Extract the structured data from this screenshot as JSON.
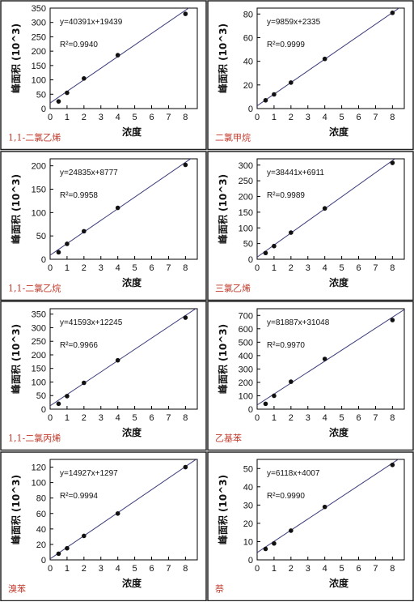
{
  "chart_data": [
    {
      "type": "scatter",
      "compound": "1,1-二氯乙烯",
      "equation": "y=40391x+19439",
      "r2": "R²=0.9940",
      "ylabel": "峰面积 (10^3)",
      "xlabel": "浓度",
      "xlim": [
        0,
        8.7
      ],
      "ylim": [
        0,
        350
      ],
      "xticks": [
        0,
        1,
        2,
        3,
        4,
        5,
        6,
        7,
        8
      ],
      "yticks": [
        0,
        50,
        100,
        150,
        200,
        250,
        300,
        350
      ],
      "points": [
        [
          0.5,
          25
        ],
        [
          1,
          55
        ],
        [
          2,
          105
        ],
        [
          4,
          186
        ],
        [
          8,
          330
        ]
      ],
      "fit": {
        "slope": 40.391,
        "intercept": 19.439
      }
    },
    {
      "type": "scatter",
      "compound": "二氯甲烷",
      "equation": "y=9859x+2335",
      "r2": "R²=0.9999",
      "ylabel": "峰面积 (10^3)",
      "xlabel": "浓度",
      "xlim": [
        0,
        8.7
      ],
      "ylim": [
        0,
        85
      ],
      "xticks": [
        0,
        1,
        2,
        3,
        4,
        5,
        6,
        7,
        8
      ],
      "yticks": [
        0,
        20,
        40,
        60,
        80
      ],
      "points": [
        [
          0.5,
          7
        ],
        [
          1,
          12
        ],
        [
          2,
          22
        ],
        [
          4,
          42
        ],
        [
          8,
          81
        ]
      ],
      "fit": {
        "slope": 9.859,
        "intercept": 2.335
      }
    },
    {
      "type": "scatter",
      "compound": "1,1-二氯乙烷",
      "equation": "y=24835x+8777",
      "r2": "R²=0.9958",
      "ylabel": "峰面积 (10^3)",
      "xlabel": "浓度",
      "xlim": [
        0,
        8.7
      ],
      "ylim": [
        0,
        215
      ],
      "xticks": [
        0,
        1,
        2,
        3,
        4,
        5,
        6,
        7,
        8
      ],
      "yticks": [
        0,
        50,
        100,
        150,
        200
      ],
      "points": [
        [
          0.5,
          15
        ],
        [
          1,
          33
        ],
        [
          2,
          60
        ],
        [
          4,
          110
        ],
        [
          8,
          202
        ]
      ],
      "fit": {
        "slope": 24.835,
        "intercept": 8.777
      }
    },
    {
      "type": "scatter",
      "compound": "三氯乙烯",
      "equation": "y=38441x+6911",
      "r2": "R²=0.9989",
      "ylabel": "峰面积 (10^3)",
      "xlabel": "浓度",
      "xlim": [
        0,
        8.7
      ],
      "ylim": [
        0,
        320
      ],
      "xticks": [
        0,
        1,
        2,
        3,
        4,
        5,
        6,
        7,
        8
      ],
      "yticks": [
        0,
        50,
        100,
        150,
        200,
        250,
        300
      ],
      "points": [
        [
          0.5,
          20
        ],
        [
          1,
          42
        ],
        [
          2,
          85
        ],
        [
          4,
          162
        ],
        [
          8,
          307
        ]
      ],
      "fit": {
        "slope": 38.441,
        "intercept": 6.911
      }
    },
    {
      "type": "scatter",
      "compound": "1,1-二氯丙烯",
      "equation": "y=41593x+12245",
      "r2": "R²=0.9966",
      "ylabel": "峰面积 (10^3)",
      "xlabel": "浓度",
      "xlim": [
        0,
        8.7
      ],
      "ylim": [
        0,
        370
      ],
      "xticks": [
        0,
        1,
        2,
        3,
        4,
        5,
        6,
        7,
        8
      ],
      "yticks": [
        0,
        50,
        100,
        150,
        200,
        250,
        300,
        350
      ],
      "points": [
        [
          0.5,
          20
        ],
        [
          1,
          48
        ],
        [
          2,
          97
        ],
        [
          4,
          180
        ],
        [
          8,
          337
        ]
      ],
      "fit": {
        "slope": 41.593,
        "intercept": 12.245
      }
    },
    {
      "type": "scatter",
      "compound": "乙基苯",
      "equation": "y=81887x+31048",
      "r2": "R²=0.9970",
      "ylabel": "峰面积 (10^3)",
      "xlabel": "浓度",
      "xlim": [
        0,
        8.7
      ],
      "ylim": [
        0,
        750
      ],
      "xticks": [
        0,
        1,
        2,
        3,
        4,
        5,
        6,
        7,
        8
      ],
      "yticks": [
        0,
        100,
        200,
        300,
        400,
        500,
        600,
        700
      ],
      "points": [
        [
          0.5,
          40
        ],
        [
          1,
          100
        ],
        [
          2,
          205
        ],
        [
          4,
          375
        ],
        [
          8,
          665
        ]
      ],
      "fit": {
        "slope": 81.887,
        "intercept": 31.048
      }
    },
    {
      "type": "scatter",
      "compound": "溴苯",
      "equation": "y=14927x+1297",
      "r2": "R²=0.9994",
      "ylabel": "峰面积 (10^3)",
      "xlabel": "浓度",
      "xlim": [
        0,
        8.7
      ],
      "ylim": [
        0,
        130
      ],
      "xticks": [
        0,
        1,
        2,
        3,
        4,
        5,
        6,
        7,
        8
      ],
      "yticks": [
        0,
        20,
        40,
        60,
        80,
        100,
        120
      ],
      "points": [
        [
          0.5,
          8
        ],
        [
          1,
          15
        ],
        [
          2,
          31
        ],
        [
          4,
          60
        ],
        [
          8,
          120
        ]
      ],
      "fit": {
        "slope": 14.927,
        "intercept": 1.297
      }
    },
    {
      "type": "scatter",
      "compound": "萘",
      "equation": "y=6118x+4007",
      "r2": "R²=0.9990",
      "ylabel": "峰面积 (10^3)",
      "xlabel": "浓度",
      "xlim": [
        0,
        8.7
      ],
      "ylim": [
        0,
        55
      ],
      "xticks": [
        0,
        1,
        2,
        3,
        4,
        5,
        6,
        7,
        8
      ],
      "yticks": [
        0,
        10,
        20,
        30,
        40,
        50
      ],
      "points": [
        [
          0.5,
          6
        ],
        [
          1,
          9
        ],
        [
          2,
          16
        ],
        [
          4,
          29
        ],
        [
          8,
          52
        ]
      ],
      "fit": {
        "slope": 6.118,
        "intercept": 4.007
      }
    }
  ],
  "colors": {
    "line": "#3b3b7a",
    "point": "#111111",
    "label": "#c0392b",
    "border": "#222222",
    "text": "#111111"
  }
}
